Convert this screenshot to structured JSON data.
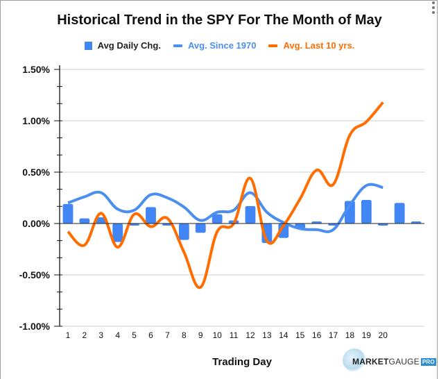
{
  "chart_data": {
    "type": "bar",
    "title": "Historical Trend in the SPY For The Month of May",
    "xlabel": "Trading Day",
    "ylabel": "",
    "ylim": [
      -1.0,
      1.5
    ],
    "y_ticks": [
      1.5,
      1.0,
      0.5,
      0.0,
      -0.5,
      -1.0
    ],
    "y_tick_labels": [
      "1.50%",
      "1.00%",
      "0.50%",
      "0.00%",
      "-0.50%",
      "-1.00%"
    ],
    "y_minor_step": 0.1667,
    "grid": true,
    "legend_position": "top",
    "categories": [
      "1",
      "2",
      "3",
      "4",
      "5",
      "6",
      "7",
      "8",
      "9",
      "10",
      "11",
      "12",
      "13",
      "14",
      "15",
      "16",
      "17",
      "18",
      "19",
      "20",
      "",
      ""
    ],
    "series": [
      {
        "name": "Avg Daily Chg.",
        "type": "bar",
        "color": "#4285f4",
        "values": [
          0.19,
          0.05,
          0.06,
          -0.18,
          -0.01,
          0.16,
          -0.02,
          -0.16,
          -0.09,
          0.09,
          0.03,
          0.17,
          -0.19,
          -0.14,
          -0.05,
          0.02,
          -0.01,
          0.22,
          0.23,
          -0.02,
          0.2,
          0.02
        ]
      },
      {
        "name": "Avg. Since 1970",
        "type": "line",
        "color": "#4a8ef0",
        "values": [
          0.2,
          0.26,
          0.3,
          0.14,
          0.13,
          0.28,
          0.25,
          0.16,
          0.03,
          0.11,
          0.13,
          0.3,
          0.11,
          0.01,
          -0.05,
          -0.06,
          -0.06,
          0.18,
          0.37,
          0.35
        ]
      },
      {
        "name": "Avg. Last 10 yrs.",
        "type": "line",
        "color": "#ff6d00",
        "values": [
          -0.08,
          -0.21,
          0.1,
          -0.23,
          0.09,
          -0.03,
          0.05,
          -0.28,
          -0.62,
          -0.08,
          0.0,
          0.44,
          -0.17,
          -0.02,
          0.24,
          0.52,
          0.38,
          0.86,
          0.99,
          1.18
        ]
      }
    ]
  },
  "legend": {
    "items": [
      {
        "label": "Avg Daily Chg.",
        "color": "#4285f4",
        "text_color": "#222222"
      },
      {
        "label": "Avg. Since 1970",
        "color": "#4a8ef0",
        "text_color": "#4a8ef0"
      },
      {
        "label": "Avg. Last 10 yrs.",
        "color": "#ff6d00",
        "text_color": "#ff6d00"
      }
    ]
  },
  "logo": {
    "brand_bold": "MARKET",
    "brand_light": "GAUGE",
    "badge": "PRO"
  },
  "menu_icon": "kebab-menu-icon"
}
